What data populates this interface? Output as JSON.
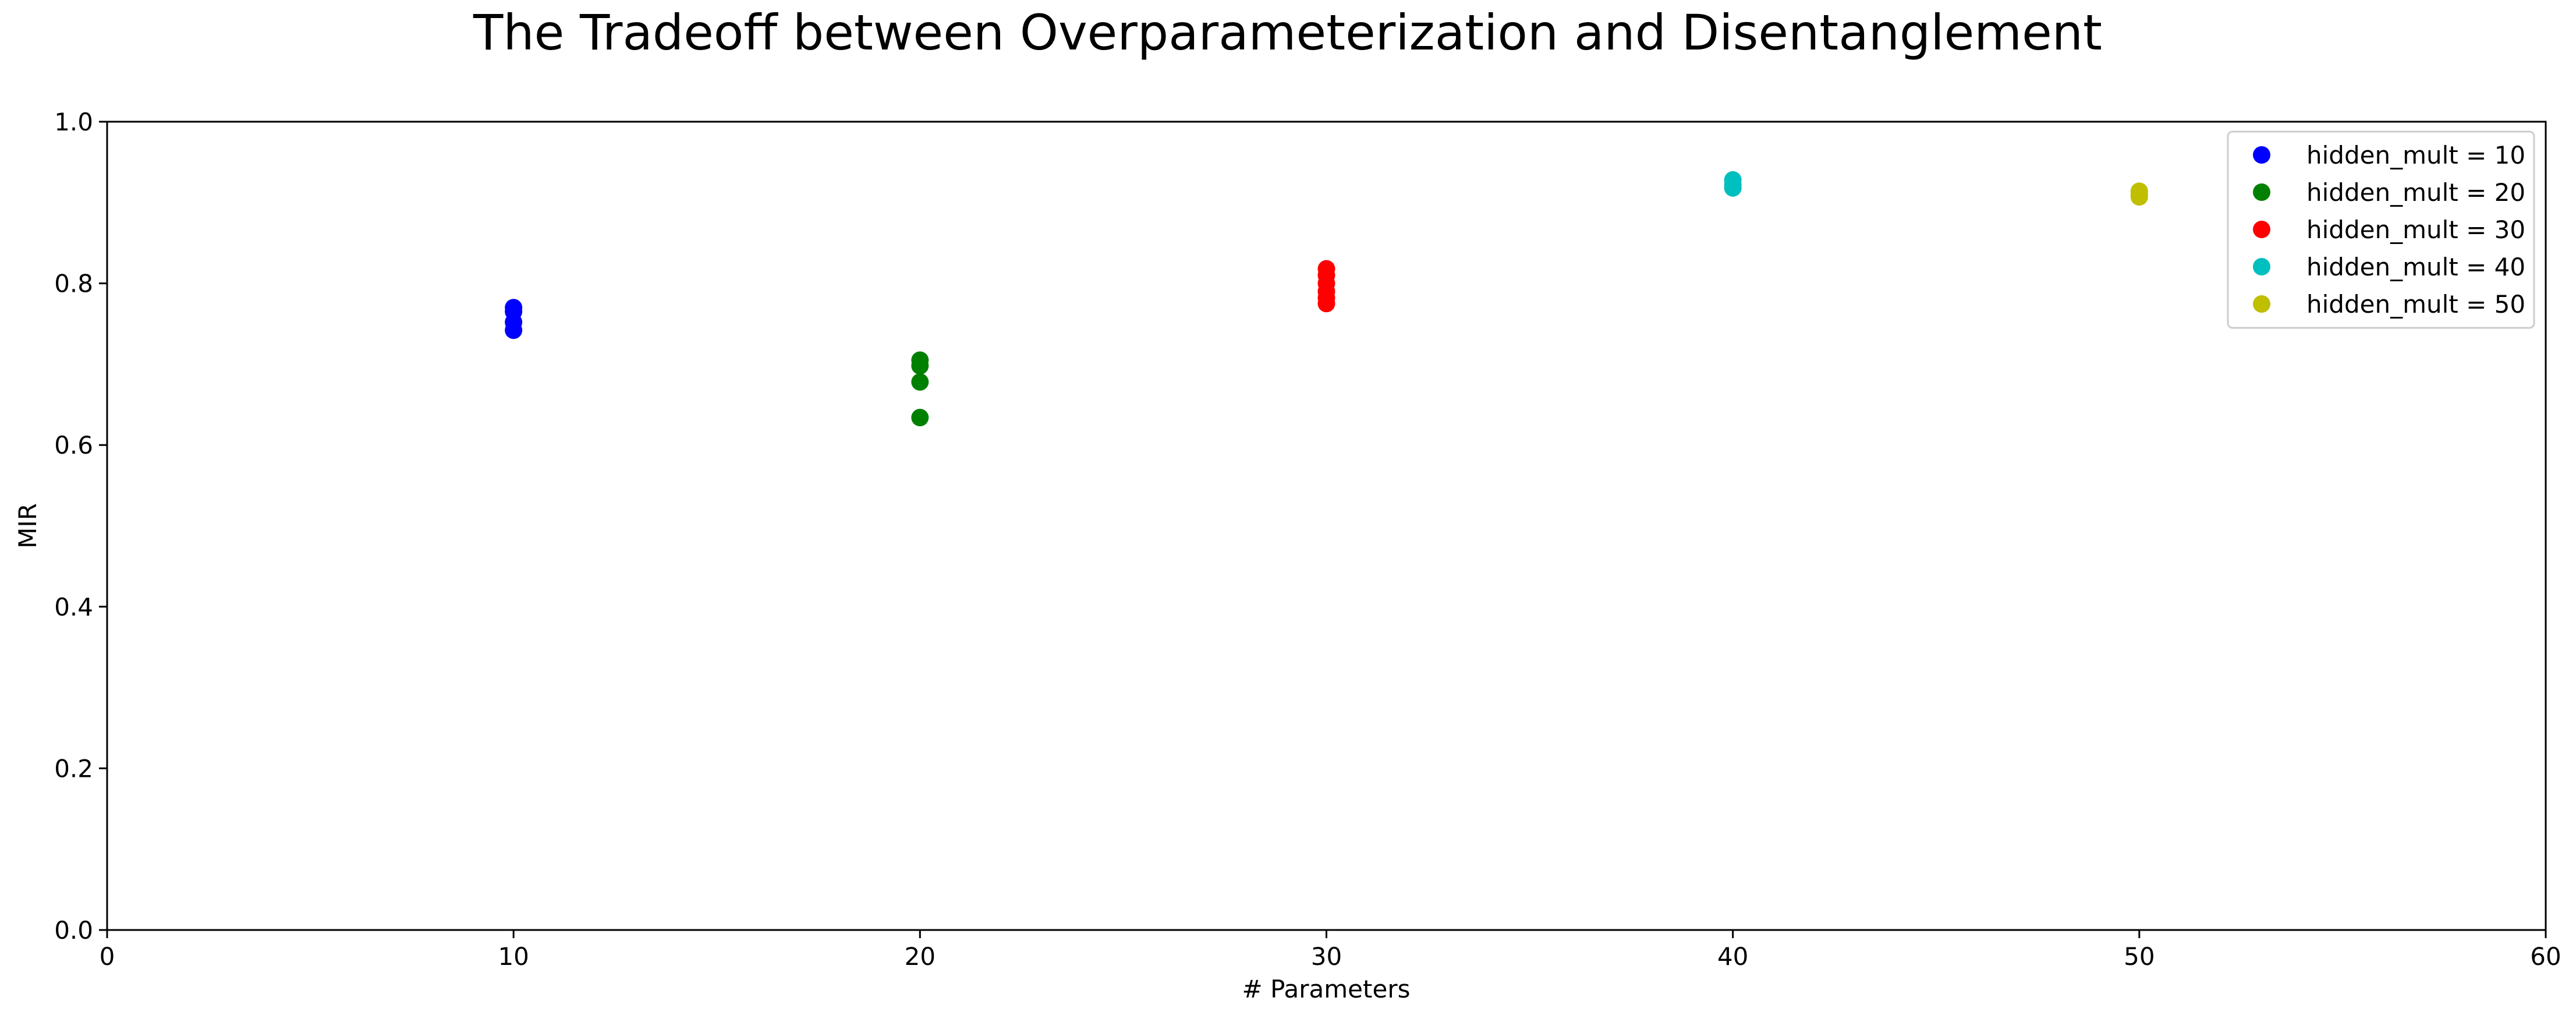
{
  "chart_data": {
    "type": "scatter",
    "title": "The Tradeoff between Overparameterization and Disentanglement",
    "xlabel": "# Parameters",
    "ylabel": "MIR",
    "xlim": [
      0,
      60
    ],
    "ylim": [
      0,
      1.0
    ],
    "xticks": [
      0,
      10,
      20,
      30,
      40,
      50,
      60
    ],
    "xtick_labels": [
      "0",
      "10",
      "20",
      "30",
      "40",
      "50",
      "60"
    ],
    "yticks": [
      0,
      0.2,
      0.4,
      0.6,
      0.8,
      1.0
    ],
    "ytick_labels": [
      "0.0",
      "0.2",
      "0.4",
      "0.6",
      "0.8",
      "1.0"
    ],
    "grid": false,
    "legend_position": "top-right",
    "series": [
      {
        "name": "hidden_mult = 10",
        "color": "#0000ff",
        "x": [
          10,
          10,
          10,
          10
        ],
        "y": [
          0.77,
          0.765,
          0.752,
          0.742
        ]
      },
      {
        "name": "hidden_mult = 20",
        "color": "#008000",
        "x": [
          20,
          20,
          20,
          20
        ],
        "y": [
          0.705,
          0.698,
          0.678,
          0.634
        ]
      },
      {
        "name": "hidden_mult = 30",
        "color": "#ff0000",
        "x": [
          30,
          30,
          30,
          30,
          30,
          30
        ],
        "y": [
          0.818,
          0.81,
          0.8,
          0.79,
          0.782,
          0.775
        ]
      },
      {
        "name": "hidden_mult = 40",
        "color": "#00bfbf",
        "x": [
          40,
          40,
          40
        ],
        "y": [
          0.928,
          0.922,
          0.918
        ]
      },
      {
        "name": "hidden_mult = 50",
        "color": "#bfbf00",
        "x": [
          50,
          50,
          50
        ],
        "y": [
          0.914,
          0.91,
          0.907
        ]
      }
    ]
  }
}
